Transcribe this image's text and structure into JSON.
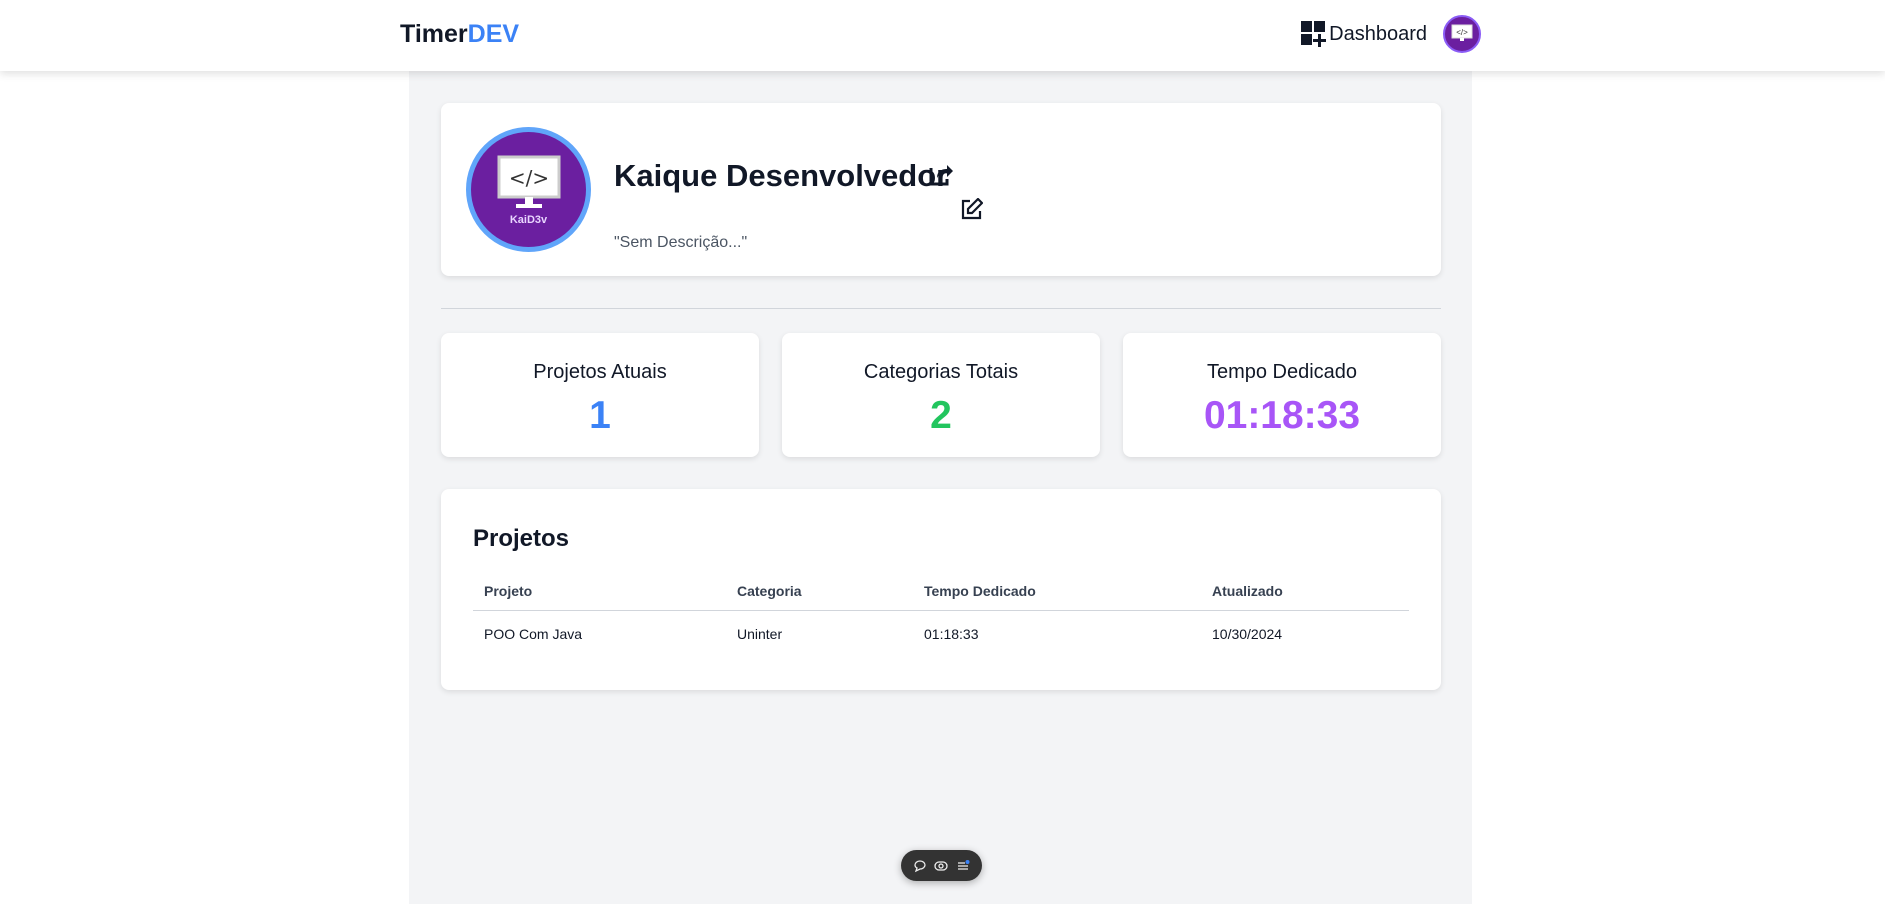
{
  "header": {
    "logo_main": "Timer",
    "logo_accent": "DEV",
    "dashboard_label": "Dashboard"
  },
  "profile": {
    "name": "Kaique Desenvolvedor",
    "description": "\"Sem Descrição...\"",
    "avatar_text": "KaiD3v"
  },
  "stats": [
    {
      "title": "Projetos Atuais",
      "value": "1",
      "color": "#3b82f6"
    },
    {
      "title": "Categorias Totais",
      "value": "2",
      "color": "#22c55e"
    },
    {
      "title": "Tempo Dedicado",
      "value": "01:18:33",
      "color": "#a855f7"
    }
  ],
  "projects": {
    "title": "Projetos",
    "columns": [
      "Projeto",
      "Categoria",
      "Tempo Dedicado",
      "Atualizado"
    ],
    "rows": [
      [
        "POO Com Java",
        "Uninter",
        "01:18:33",
        "10/30/2024"
      ]
    ]
  }
}
